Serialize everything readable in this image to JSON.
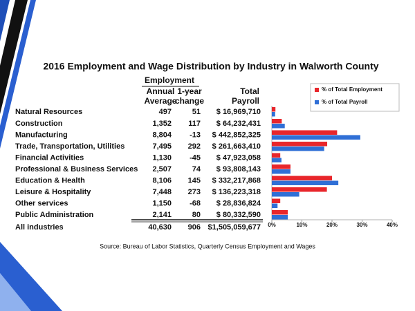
{
  "title": "2016 Employment and Wage Distribution by Industry in Walworth County",
  "header": {
    "group": "Employment",
    "annual": [
      "Annual",
      "Average"
    ],
    "change": [
      "1-year",
      "change"
    ],
    "payroll": [
      "Total",
      "Payroll"
    ]
  },
  "table": {
    "rows": [
      [
        "497",
        "51",
        "$ 16,969,710"
      ],
      [
        "1,352",
        "117",
        "$ 64,232,431"
      ],
      [
        "8,804",
        "-13",
        "$ 442,852,325"
      ],
      [
        "7,495",
        "292",
        "$ 261,663,410"
      ],
      [
        "1,130",
        "-45",
        "$ 47,923,058"
      ],
      [
        "2,507",
        "74",
        "$ 93,808,143"
      ],
      [
        "8,106",
        "145",
        "$ 332,217,868"
      ],
      [
        "7,448",
        "273",
        "$ 136,223,318"
      ],
      [
        "1,150",
        "-68",
        "$ 28,836,824"
      ],
      [
        "2,141",
        "80",
        "$ 80,332,590"
      ]
    ],
    "total": [
      "All industries",
      "40,630",
      "906",
      "$1,505,059,677"
    ]
  },
  "chart_data": {
    "type": "bar",
    "orientation": "horizontal",
    "categories": [
      "Natural Resources",
      "Construction",
      "Manufacturing",
      "Trade, Transportation, Utilities",
      "Financial Activities",
      "Professional & Business Services",
      "Education & Health",
      "Leisure & Hospitality",
      "Other services",
      "Public Administration"
    ],
    "series": [
      {
        "name": "% of Total Employment",
        "color": "#e8262b",
        "values": [
          1.2,
          3.3,
          21.7,
          18.4,
          2.8,
          6.2,
          20.0,
          18.3,
          2.8,
          5.3
        ]
      },
      {
        "name": "% of Total Payroll",
        "color": "#2f6fd6",
        "values": [
          1.1,
          4.3,
          29.4,
          17.4,
          3.2,
          6.2,
          22.1,
          9.1,
          1.9,
          5.3
        ]
      }
    ],
    "xlim": [
      0,
      40
    ],
    "xticks": [
      {
        "value": 0,
        "label": "0%"
      },
      {
        "value": 10,
        "label": "10%"
      },
      {
        "value": 20,
        "label": "20%"
      },
      {
        "value": 30,
        "label": "30%"
      },
      {
        "value": 40,
        "label": "40%"
      }
    ],
    "legend": "upper-right"
  },
  "source": "Source: Bureau of Labor Statistics, Quarterly Census Employment and Wages"
}
